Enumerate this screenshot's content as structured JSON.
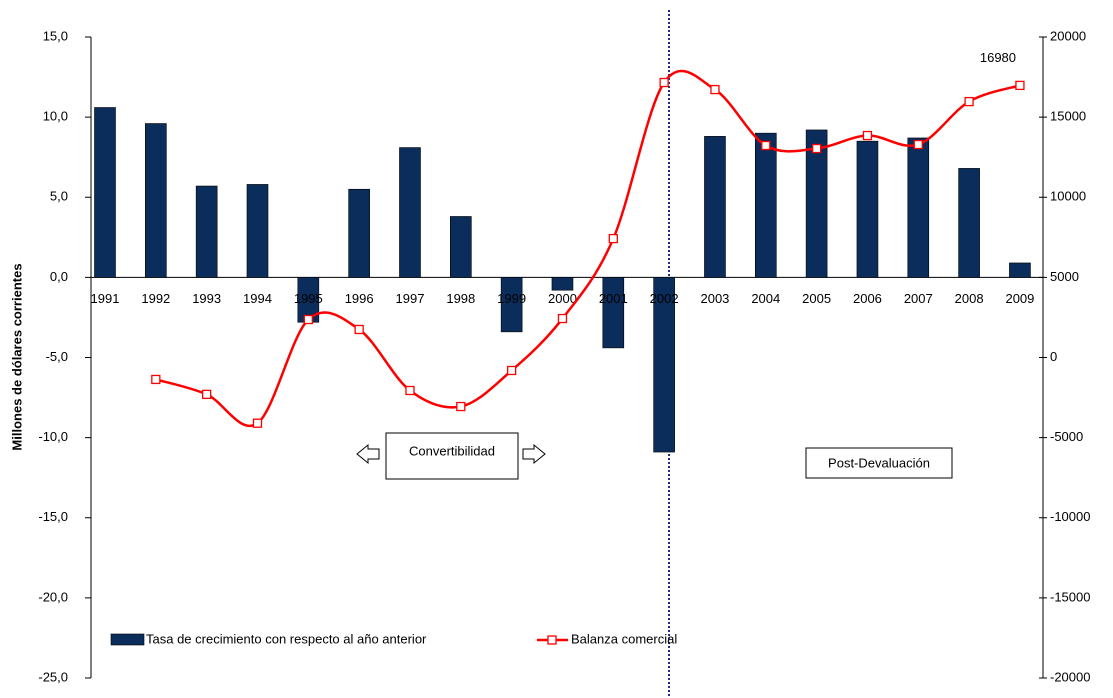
{
  "chart_data": {
    "type": "bar-line",
    "y_label": "Millones de dólares corrientes",
    "categories": [
      "1991",
      "1992",
      "1993",
      "1994",
      "1995",
      "1996",
      "1997",
      "1998",
      "1999",
      "2000",
      "2001",
      "2002",
      "2003",
      "2004",
      "2005",
      "2006",
      "2007",
      "2008",
      "2009"
    ],
    "series": [
      {
        "name": "Tasa de crecimiento con respecto al año anterior",
        "color": "#0b2d5b",
        "type": "bar",
        "values": [
          10.6,
          9.6,
          5.7,
          5.8,
          -2.8,
          5.5,
          8.1,
          3.8,
          -3.4,
          -0.8,
          -4.4,
          -10.9,
          8.8,
          9.0,
          9.2,
          8.5,
          8.7,
          6.8,
          0.9
        ]
      },
      {
        "name": "Balanza comercial",
        "color": "#ff0000",
        "type": "line",
        "axis": "y2",
        "values": [
          null,
          -1370,
          -2300,
          -4100,
          2370,
          1750,
          -2060,
          -3060,
          -810,
          2430,
          7420,
          17160,
          16720,
          13230,
          13040,
          13850,
          13290,
          15970,
          16980
        ]
      }
    ],
    "ylim": [
      -25,
      15
    ],
    "yticks": [
      {
        "value": -25,
        "label": "-25,0"
      },
      {
        "value": -20,
        "label": "-20,0"
      },
      {
        "value": -15,
        "label": "-15,0"
      },
      {
        "value": -10,
        "label": "-10,0"
      },
      {
        "value": -5,
        "label": "-5,0"
      },
      {
        "value": 0,
        "label": "0,0"
      },
      {
        "value": 5,
        "label": "5,0"
      },
      {
        "value": 10,
        "label": "10,0"
      },
      {
        "value": 15,
        "label": "15,0"
      }
    ],
    "y2lim": [
      -20000,
      20000
    ],
    "y2ticks": [
      -20000,
      -15000,
      -10000,
      -5000,
      0,
      5000,
      10000,
      15000,
      20000
    ],
    "annotations": [
      "Convertibilidad",
      "Post-Devaluación"
    ],
    "legend": "bottom-left"
  }
}
